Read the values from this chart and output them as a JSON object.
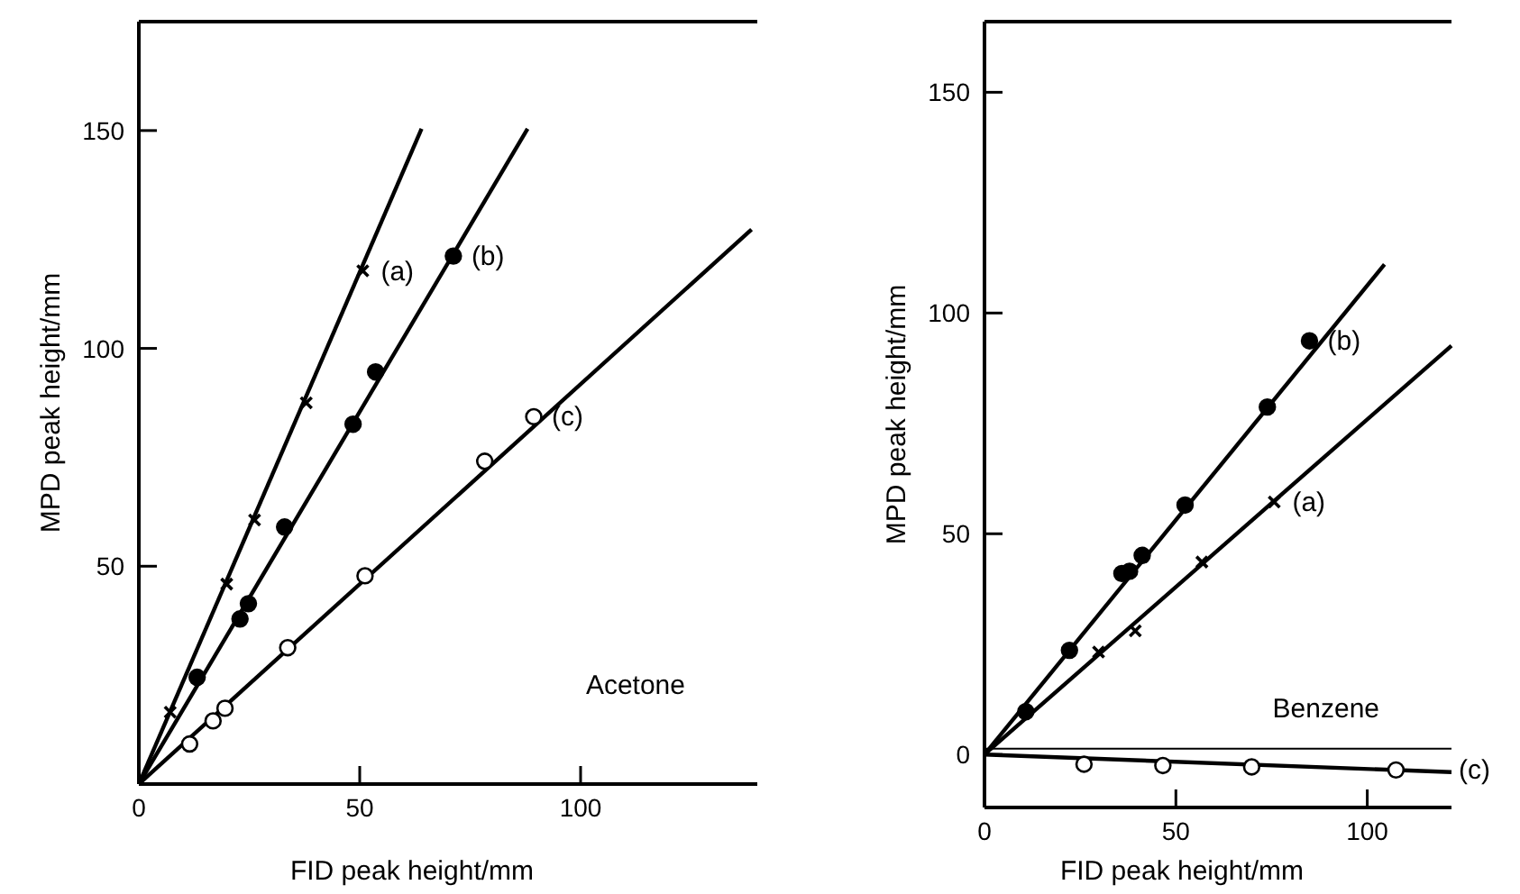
{
  "chart_data": [
    {
      "type": "scatter",
      "xlabel": "FID peak height/mm",
      "ylabel": "MPD peak height/mm",
      "xlim": [
        0,
        140
      ],
      "ylim": [
        0,
        175
      ],
      "xticks": [
        0,
        50,
        100
      ],
      "yticks": [
        50,
        100,
        150
      ],
      "annotations": [
        "Acetone"
      ],
      "series": [
        {
          "name": "(a)",
          "color": "#000000",
          "marker": "cross",
          "x": [
            7.1,
            19.9,
            26.2,
            37.9,
            50.7
          ],
          "values": [
            16.5,
            45.9,
            60.6,
            87.5,
            117.8
          ]
        },
        {
          "name": "(b)",
          "color": "#000000",
          "marker": "circle",
          "x": [
            13.2,
            22.9,
            24.8,
            33,
            48.5,
            53.6,
            71.2
          ],
          "values": [
            24.5,
            37.9,
            41.4,
            59,
            82.6,
            94.6,
            121.2
          ]
        },
        {
          "name": "(c)",
          "color": "#ffffff",
          "marker": "circle",
          "x": [
            11.5,
            16.8,
            19.5,
            33.7,
            51.2,
            78.3,
            89.4
          ],
          "values": [
            9.2,
            14.5,
            17.4,
            31.3,
            47.8,
            74.1,
            84.3
          ]
        },
        {
          "type": "line",
          "color": "#000000",
          "x": [
            0,
            64
          ],
          "values": [
            0,
            150.4
          ]
        },
        {
          "type": "line",
          "color": "#000000",
          "x": [
            0,
            88
          ],
          "values": [
            0,
            150.4
          ]
        },
        {
          "type": "line",
          "color": "#000000",
          "x": [
            0,
            138.7
          ],
          "values": [
            0,
            127.3
          ]
        }
      ]
    },
    {
      "type": "scatter",
      "xlabel": "FID peak height/mm",
      "ylabel": "MPD peak height/mm",
      "xlim": [
        0,
        122
      ],
      "ylim": [
        -12,
        166
      ],
      "xticks": [
        0,
        50,
        100
      ],
      "yticks": [
        0,
        50,
        100,
        150
      ],
      "annotations": [
        "Benzene"
      ],
      "ref_lines": [
        {
          "axis": "y",
          "value": 1.3,
          "label": null
        }
      ],
      "series": [
        {
          "name": "(b)",
          "color": "#000000",
          "marker": "circle",
          "x": [
            10.8,
            22.2,
            35.9,
            37.9,
            41.2,
            52.4,
            73.9,
            84.9
          ],
          "values": [
            9.7,
            23.6,
            41,
            41.5,
            45.1,
            56.5,
            78.7,
            93.7
          ]
        },
        {
          "name": "(a)",
          "color": "#000000",
          "marker": "cross",
          "x": [
            29.8,
            39.4,
            56.8,
            75.7
          ],
          "values": [
            23.2,
            28,
            43.6,
            57.2
          ]
        },
        {
          "name": "(c)",
          "color": "#ffffff",
          "marker": "circle",
          "x": [
            26,
            46.6,
            69.8,
            107.5
          ],
          "values": [
            -2.2,
            -2.5,
            -2.8,
            -3.5
          ]
        },
        {
          "type": "line",
          "color": "#000000",
          "x": [
            0,
            104.5
          ],
          "values": [
            0,
            111
          ]
        },
        {
          "type": "line",
          "color": "#000000",
          "x": [
            0,
            122
          ],
          "values": [
            0,
            92.6
          ]
        },
        {
          "type": "line",
          "color": "#000000",
          "x": [
            0,
            122
          ],
          "values": [
            0,
            -4
          ]
        }
      ]
    }
  ]
}
